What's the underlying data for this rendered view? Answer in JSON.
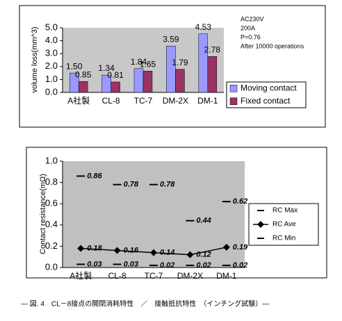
{
  "chart_data": [
    {
      "type": "bar",
      "y_label": "volume loss(mm^3)",
      "annotations": [
        "AC230V",
        "200A",
        "P=0.76",
        "After 10000 operations"
      ],
      "categories": [
        "A社製",
        "CL-8",
        "TC-7",
        "DM-2X",
        "DM-1"
      ],
      "series": [
        {
          "name": "Moving contact",
          "color": "#9999ff",
          "values": [
            1.5,
            1.34,
            1.84,
            3.59,
            4.53
          ],
          "value_labels": [
            "1.50",
            "1.34",
            "1.84",
            "3.59",
            "4.53"
          ]
        },
        {
          "name": "Fixed contact",
          "color": "#993366",
          "values": [
            0.85,
            0.81,
            1.65,
            1.79,
            2.78
          ],
          "value_labels": [
            "0.85",
            "0.81",
            "1.65",
            "1.79",
            "2.78"
          ]
        }
      ],
      "ylim": [
        0,
        5
      ],
      "yticks": [
        {
          "value": 0,
          "label": "0.0"
        },
        {
          "value": 1,
          "label": "1.0"
        },
        {
          "value": 2,
          "label": "2.0"
        },
        {
          "value": 3,
          "label": "3.0"
        },
        {
          "value": 4,
          "label": "4.0"
        },
        {
          "value": 5,
          "label": "5.0"
        }
      ],
      "grid": false,
      "background": "#c8c8c8"
    },
    {
      "type": "line",
      "y_label": "Contact resistance(mΩ)",
      "categories": [
        "A社製",
        "CL-8",
        "TC-7",
        "DM-2X",
        "DM-1"
      ],
      "series": [
        {
          "name": "RC Max",
          "color": "#000000",
          "marker": "dash",
          "line": false,
          "values": [
            0.86,
            0.78,
            0.78,
            0.44,
            0.62
          ]
        },
        {
          "name": "RC Ave",
          "color": "#000000",
          "marker": "diamond",
          "line": true,
          "values": [
            0.18,
            0.16,
            0.14,
            0.12,
            0.19
          ]
        },
        {
          "name": "RC Min",
          "color": "#000000",
          "marker": "dash",
          "line": false,
          "values": [
            0.03,
            0.03,
            0.02,
            0.02,
            0.02
          ]
        }
      ],
      "ylim": [
        0,
        1
      ],
      "yticks": [
        {
          "value": 0,
          "label": "0.0"
        },
        {
          "value": 0.2,
          "label": "0.2"
        },
        {
          "value": 0.4,
          "label": "0.4"
        },
        {
          "value": 0.6,
          "label": "0.6"
        },
        {
          "value": 0.8,
          "label": "0.8"
        },
        {
          "value": 1,
          "label": "1.0"
        }
      ],
      "grid": false,
      "background": "#c0c0c0"
    }
  ],
  "caption": "— 図. 4　CL－8接点の開閉消耗特性　／　接触抵抗特性　（インチング試験）—"
}
